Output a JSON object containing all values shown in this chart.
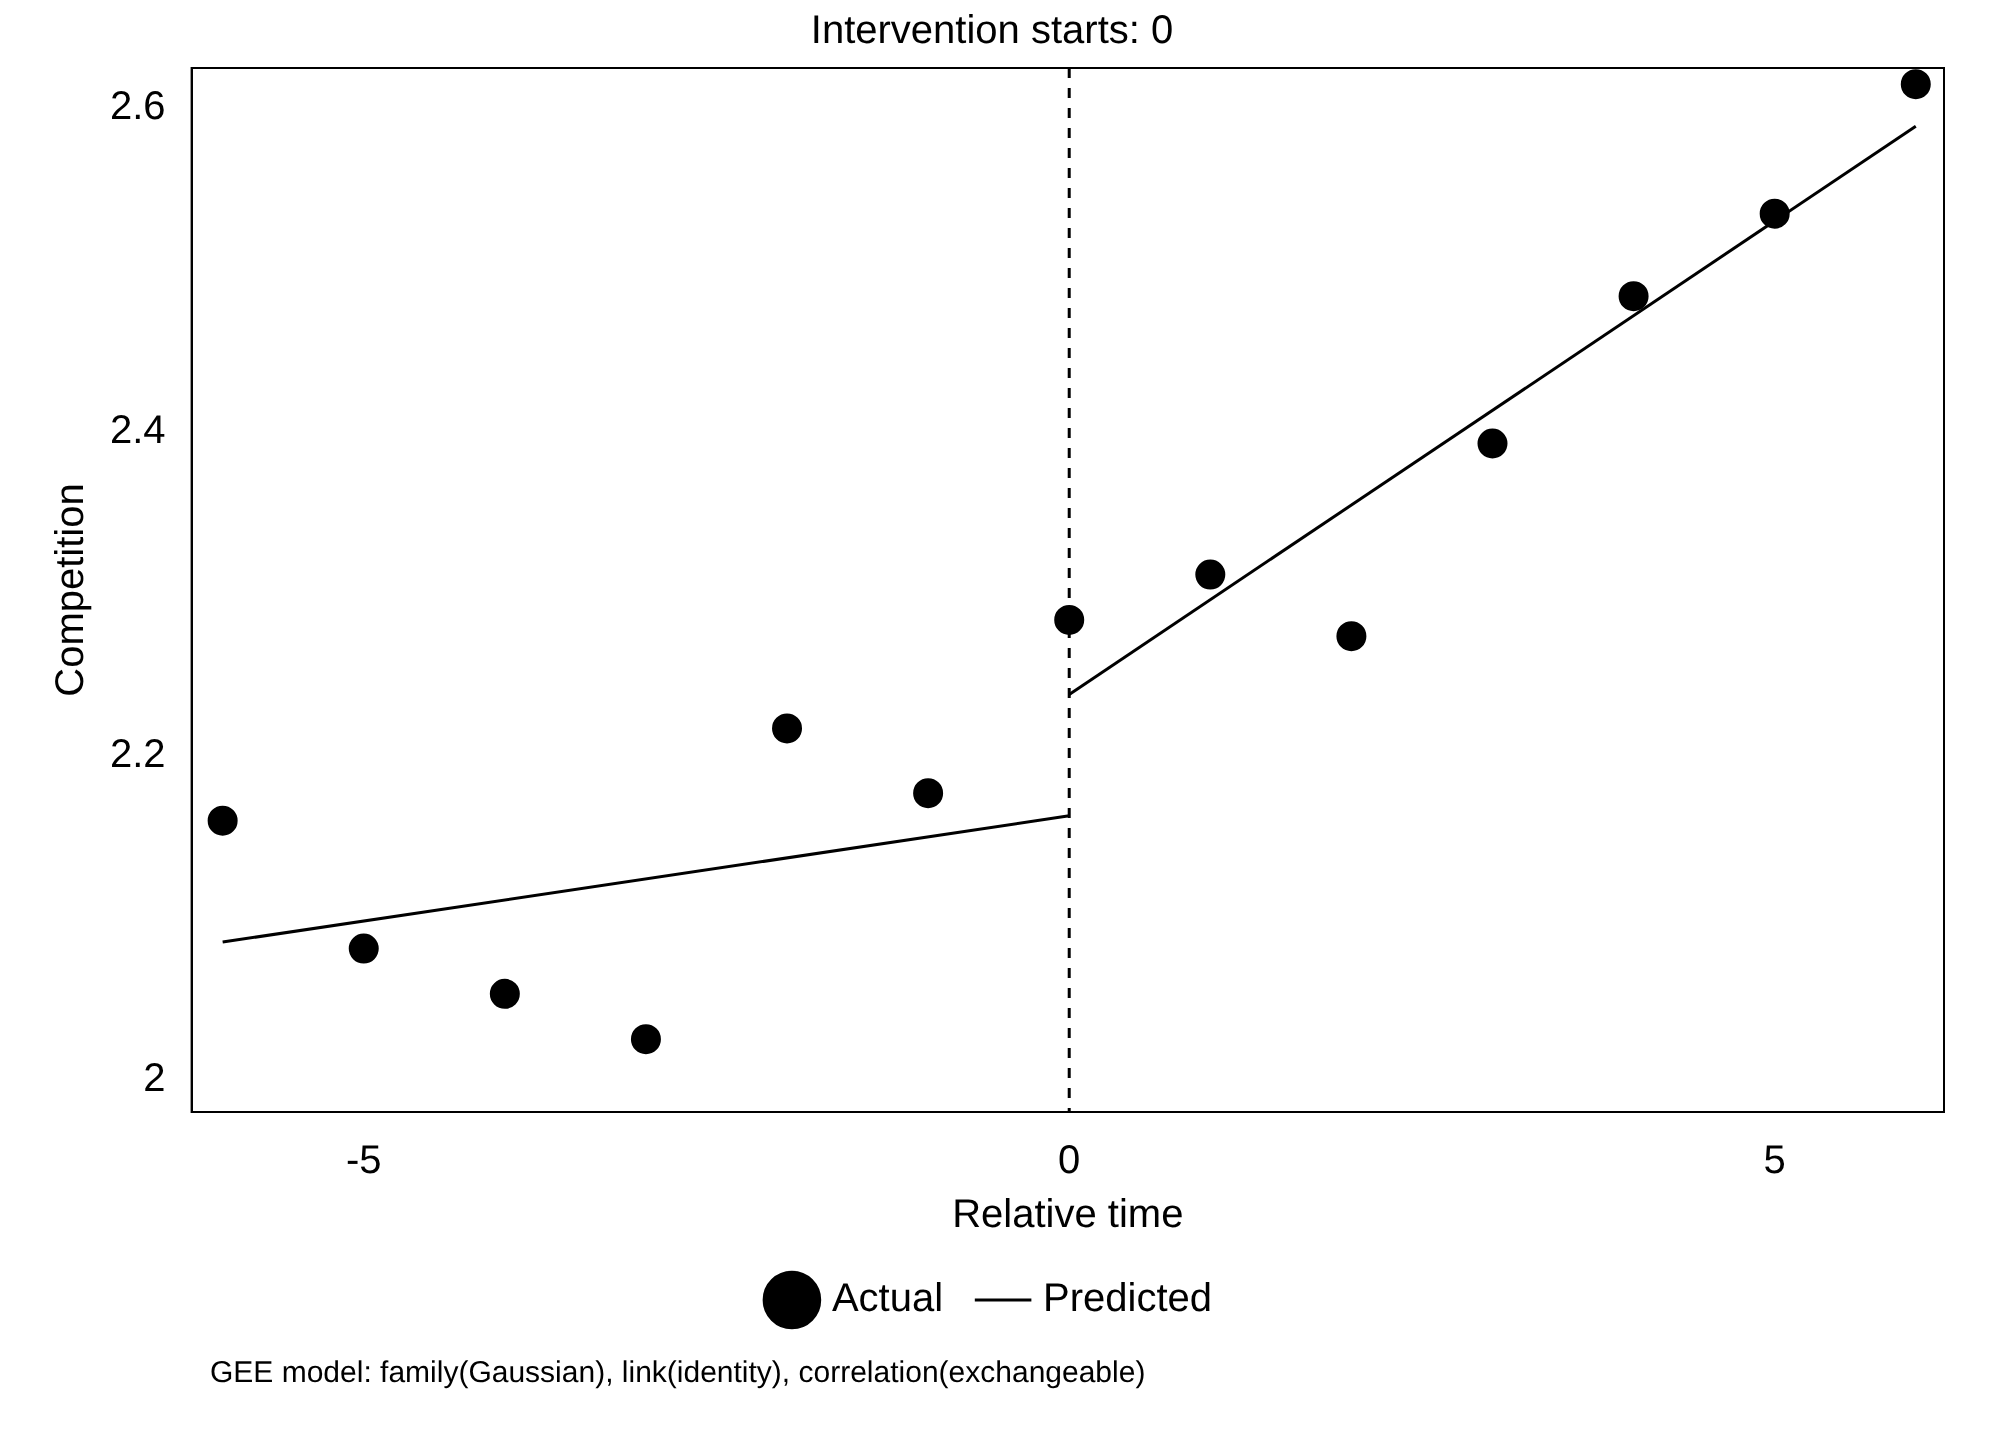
{
  "chart_data": {
    "type": "scatter",
    "title": "Intervention starts: 0",
    "xlabel": "Relative time",
    "ylabel": "Competition",
    "series": [
      {
        "name": "Actual",
        "color": "#000000",
        "marker": "circle",
        "x": [
          -6,
          -5,
          -4,
          -3,
          -2,
          -1,
          0,
          1,
          2,
          3,
          4,
          5,
          6
        ],
        "values": [
          2.16,
          2.081,
          2.053,
          2.025,
          2.217,
          2.177,
          2.284,
          2.312,
          2.274,
          2.393,
          2.484,
          2.535,
          2.615
        ]
      },
      {
        "name": "Predicted",
        "type": "line",
        "color": "#000000",
        "line_style": "solid",
        "x": [
          -6,
          0
        ],
        "values": [
          2.085,
          2.163
        ]
      },
      {
        "type": "line",
        "color": "#000000",
        "line_style": "solid",
        "x": [
          0,
          6
        ],
        "values": [
          2.238,
          2.589
        ]
      }
    ],
    "xlim": [
      -6.22,
      6.2
    ],
    "xticks": [
      -5,
      0,
      5
    ],
    "ylim": [
      1.98,
      2.625
    ],
    "yticks": [
      2,
      2.2,
      2.4,
      2.6
    ],
    "ref_lines": [
      {
        "axis": "x",
        "value": 0,
        "line_style": "dashed",
        "color": "#000000"
      }
    ],
    "grid": false,
    "legend": "bottom",
    "annotations": [
      "GEE model: family(Gaussian), link(identity), correlation(exchangeable)"
    ]
  }
}
